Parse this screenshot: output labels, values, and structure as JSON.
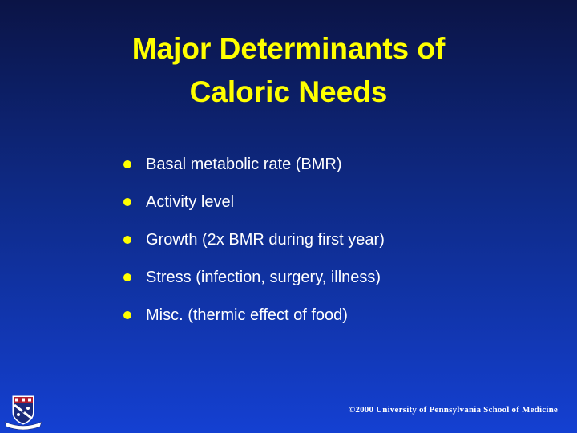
{
  "slide": {
    "title_line1": "Major Determinants of",
    "title_line2": "Caloric Needs",
    "bullets": [
      "Basal metabolic rate (BMR)",
      "Activity level",
      "Growth (2x BMR during first year)",
      "Stress (infection, surgery, illness)",
      "Misc. (thermic effect of food)"
    ],
    "footer": "©2000 University of Pennsylvania School of Medicine"
  },
  "colors": {
    "title": "#ffff00",
    "bullet_dot": "#ffff00",
    "text": "#ffffff",
    "background_top": "#0b1446",
    "background_bottom": "#1440d2"
  },
  "icons": {
    "logo": "university-crest-icon"
  }
}
